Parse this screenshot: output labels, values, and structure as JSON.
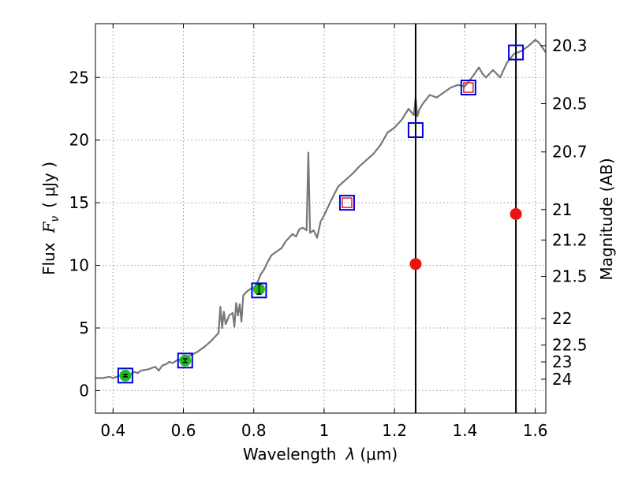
{
  "chart_data": {
    "type": "line",
    "title": "",
    "xlabel_text": "Wavelength",
    "xlabel_symbol": "λ",
    "xlabel_unit": "(μm)",
    "ylabel_text": "Flux",
    "ylabel_symbol": "F",
    "ylabel_symbol_sub": "ν",
    "ylabel_unit": "( μJy )",
    "y2label": "Magnitude (AB)",
    "xlim": [
      0.35,
      1.63
    ],
    "ylim": [
      -1.8,
      29.3
    ],
    "x_ticks": [
      0.4,
      0.6,
      0.8,
      1.0,
      1.2,
      1.4,
      1.6
    ],
    "x_tick_labels": [
      "0.4",
      "0.6",
      "0.8",
      "1",
      "1.2",
      "1.4",
      "1.6"
    ],
    "y_ticks": [
      0,
      5,
      10,
      15,
      20,
      25
    ],
    "y_tick_labels": [
      "0",
      "5",
      "10",
      "15",
      "20",
      "25"
    ],
    "mag_ticks": [
      20.3,
      20.5,
      20.7,
      21,
      21.2,
      21.5,
      22,
      22.5,
      23,
      24
    ],
    "mag_tick_labels": [
      "20.3",
      "20.5",
      "20.7",
      "21",
      "21.2",
      "21.5",
      "22",
      "22.5",
      "23",
      "24"
    ],
    "grid": true,
    "vertical_lines_x": [
      1.26,
      1.545
    ],
    "colors": {
      "model": "#777777",
      "model_box": "#0000dd",
      "observed_detection": "#22bb22",
      "observed_red_box": "#dd2222",
      "nondetection_point": "#ee1111",
      "vertical_line": "#000000",
      "grid": "#999999"
    },
    "series": [
      {
        "name": "model spectrum",
        "style": "line",
        "x": [
          0.35,
          0.37,
          0.39,
          0.4,
          0.42,
          0.44,
          0.45,
          0.46,
          0.47,
          0.48,
          0.5,
          0.52,
          0.53,
          0.54,
          0.55,
          0.56,
          0.57,
          0.58,
          0.6,
          0.62,
          0.64,
          0.66,
          0.68,
          0.7,
          0.705,
          0.71,
          0.715,
          0.72,
          0.73,
          0.74,
          0.745,
          0.75,
          0.755,
          0.76,
          0.765,
          0.77,
          0.78,
          0.79,
          0.8,
          0.81,
          0.82,
          0.83,
          0.84,
          0.85,
          0.86,
          0.87,
          0.88,
          0.89,
          0.9,
          0.91,
          0.92,
          0.93,
          0.94,
          0.95,
          0.955,
          0.96,
          0.97,
          0.98,
          0.99,
          1.0,
          1.02,
          1.04,
          1.06,
          1.08,
          1.1,
          1.12,
          1.14,
          1.16,
          1.18,
          1.2,
          1.22,
          1.24,
          1.255,
          1.26,
          1.265,
          1.27,
          1.28,
          1.3,
          1.32,
          1.34,
          1.36,
          1.38,
          1.4,
          1.42,
          1.44,
          1.45,
          1.46,
          1.48,
          1.5,
          1.52,
          1.54,
          1.56,
          1.58,
          1.6,
          1.61,
          1.63
        ],
        "y": [
          1.0,
          1.0,
          1.1,
          1.0,
          1.2,
          1.3,
          1.3,
          1.5,
          1.4,
          1.6,
          1.7,
          1.9,
          1.6,
          2.0,
          2.1,
          2.3,
          2.2,
          2.4,
          2.6,
          2.8,
          3.1,
          3.5,
          4.0,
          4.6,
          6.7,
          5.0,
          6.3,
          5.3,
          6.0,
          6.2,
          5.1,
          7.0,
          6.0,
          6.9,
          5.5,
          7.6,
          7.9,
          8.1,
          8.2,
          8.6,
          9.3,
          9.7,
          10.3,
          10.8,
          11.0,
          11.2,
          11.4,
          11.9,
          12.2,
          12.5,
          12.3,
          12.9,
          13.0,
          12.8,
          19.0,
          12.6,
          12.8,
          12.2,
          13.5,
          14.0,
          15.2,
          16.3,
          16.8,
          17.3,
          17.9,
          18.4,
          18.9,
          19.6,
          20.6,
          21.0,
          21.6,
          22.5,
          22.0,
          23.4,
          21.9,
          22.4,
          22.9,
          23.6,
          23.4,
          23.8,
          24.2,
          24.4,
          24.3,
          25.0,
          25.8,
          25.3,
          25.0,
          25.6,
          25.0,
          26.2,
          26.9,
          27.1,
          27.5,
          28.0,
          27.8,
          27.0
        ]
      },
      {
        "name": "model band fluxes",
        "style": "open-square",
        "x": [
          0.435,
          0.605,
          0.815,
          1.065,
          1.26,
          1.41,
          1.545
        ],
        "y": [
          1.2,
          2.4,
          8.0,
          15.0,
          20.8,
          24.2,
          27.0
        ]
      },
      {
        "name": "observed detections",
        "style": "filled-circle-errorbar",
        "x": [
          0.435,
          0.605,
          0.815
        ],
        "y": [
          1.2,
          2.4,
          8.1
        ],
        "err": [
          0.1,
          0.15,
          0.4
        ]
      },
      {
        "name": "observed near-ir",
        "style": "small-red-square",
        "x": [
          1.065,
          1.41
        ],
        "y": [
          15.0,
          24.2
        ],
        "err": [
          0.5,
          0.4
        ]
      },
      {
        "name": "red points",
        "style": "filled-circle",
        "x": [
          1.26,
          1.545
        ],
        "y": [
          10.1,
          14.1
        ]
      }
    ]
  }
}
